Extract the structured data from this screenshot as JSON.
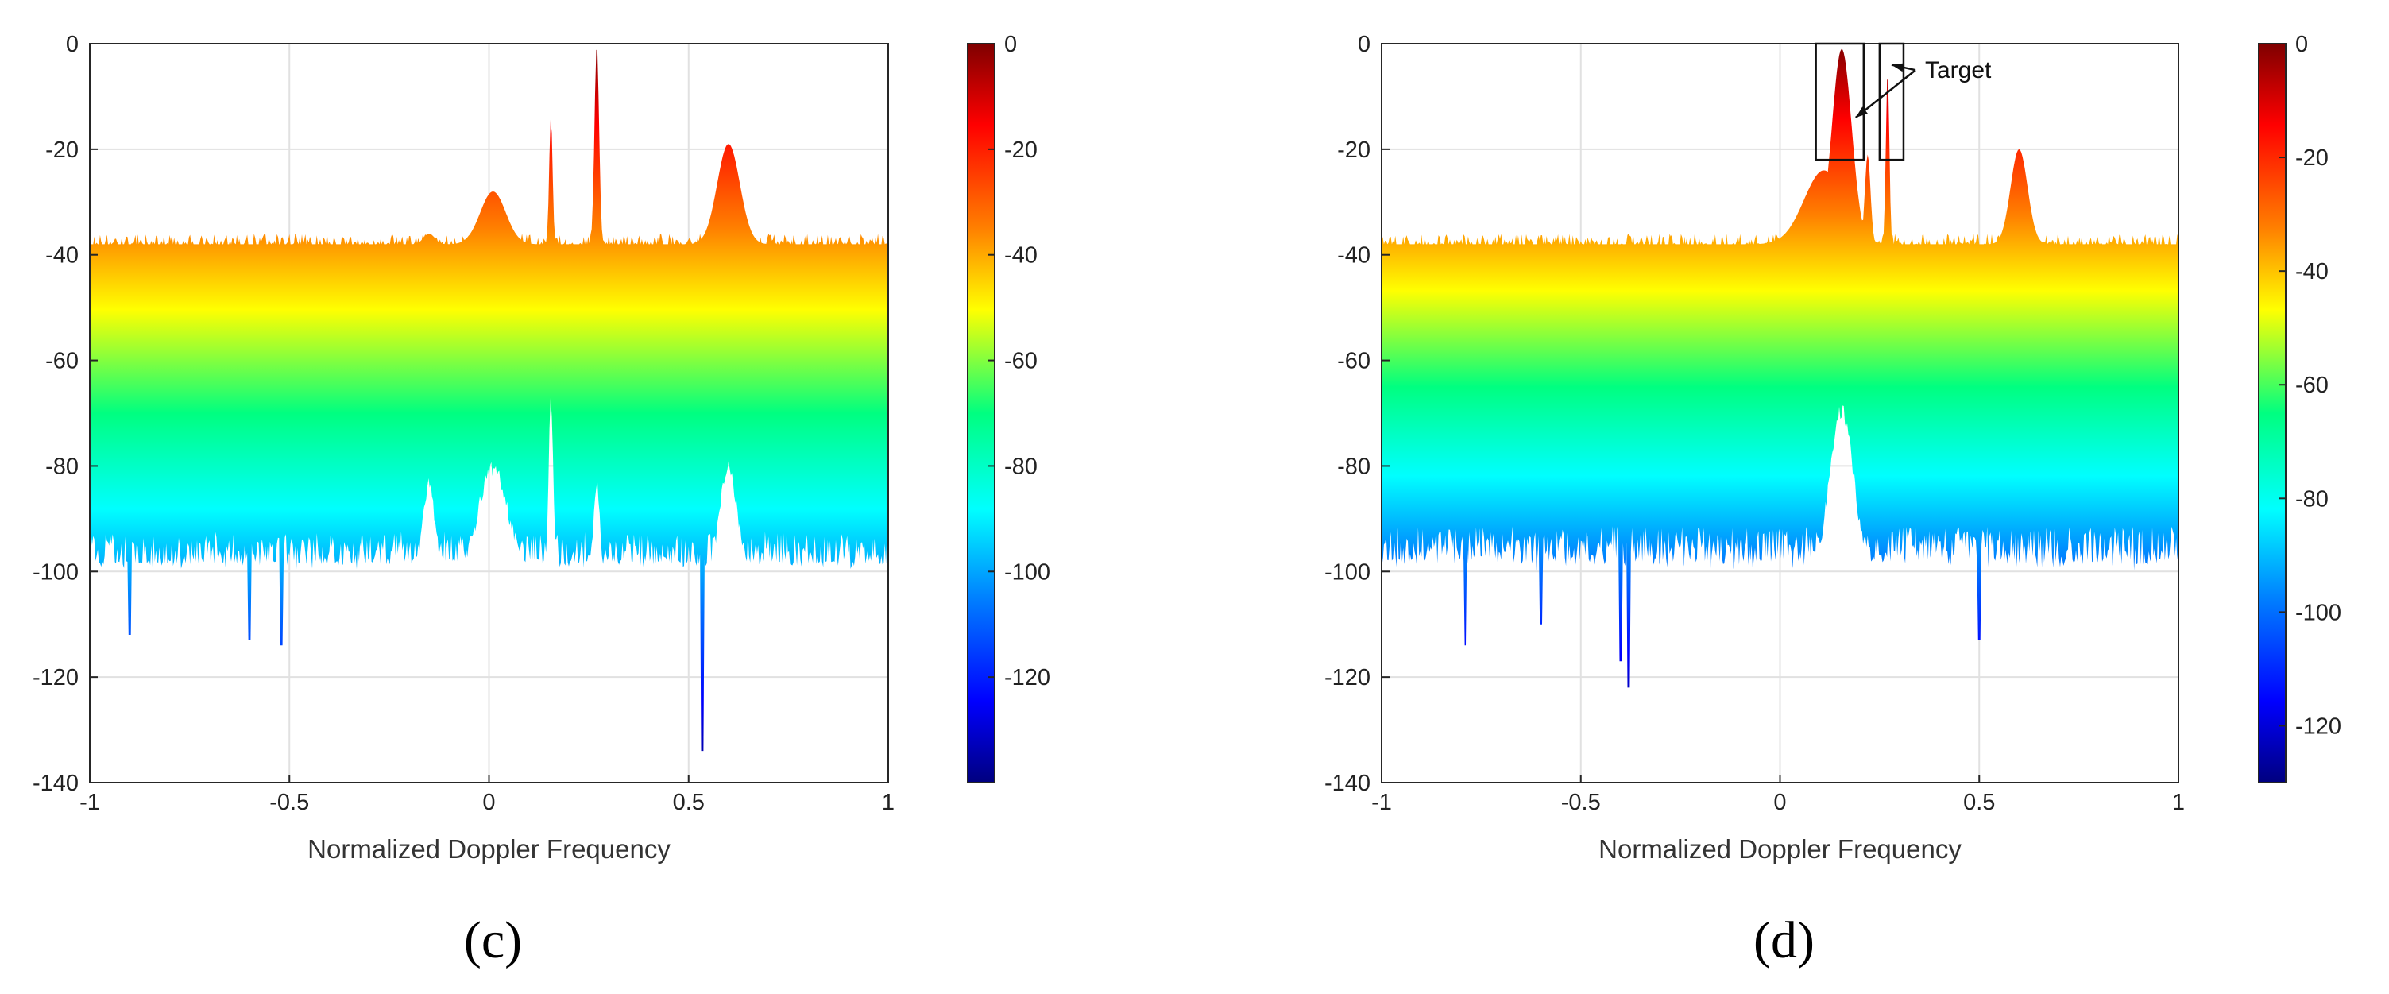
{
  "chart_data": [
    {
      "type": "area",
      "panel_label": "(c)",
      "xlabel": "Normalized Doppler Frequency",
      "ylabel": "",
      "xlim": [
        -1,
        1
      ],
      "ylim": [
        -140,
        0
      ],
      "x_ticks": [
        -1,
        -0.5,
        0,
        0.5,
        1
      ],
      "x_tick_labels": [
        "-1",
        "-0.5",
        "0",
        "0.5",
        "1"
      ],
      "y_ticks": [
        0,
        -20,
        -40,
        -60,
        -80,
        -100,
        -120,
        -140
      ],
      "y_tick_labels": [
        "0",
        "-20",
        "-40",
        "-60",
        "-80",
        "-100",
        "-120",
        "-140"
      ],
      "grid": true,
      "colorbar": {
        "range": [
          -140,
          0
        ],
        "ticks": [
          0,
          -20,
          -40,
          -60,
          -80,
          -100,
          -120
        ],
        "tick_labels": [
          "0",
          "-20",
          "-40",
          "-60",
          "-80",
          "-100",
          "-120"
        ]
      },
      "upper_envelope": {
        "baseline": -38,
        "peaks": [
          {
            "x": 0.01,
            "y": -28,
            "width": 0.045
          },
          {
            "x": -0.15,
            "y": -36,
            "width": 0.02
          },
          {
            "x": 0.155,
            "y": -14,
            "width": 0.006
          },
          {
            "x": 0.27,
            "y": 0,
            "width": 0.008
          },
          {
            "x": 0.6,
            "y": -19,
            "width": 0.04
          }
        ]
      },
      "lower_envelope": {
        "baseline": -98,
        "peaks": [
          {
            "x": 0.01,
            "y": -79,
            "width": 0.05
          },
          {
            "x": -0.15,
            "y": -82,
            "width": 0.02
          },
          {
            "x": 0.155,
            "y": -66,
            "width": 0.008
          },
          {
            "x": 0.27,
            "y": -81,
            "width": 0.01
          },
          {
            "x": 0.6,
            "y": -79,
            "width": 0.03
          }
        ],
        "dips": [
          {
            "x": 0.535,
            "y": -134
          },
          {
            "x": -0.52,
            "y": -114
          },
          {
            "x": -0.6,
            "y": -113
          },
          {
            "x": -0.9,
            "y": -112
          }
        ]
      }
    },
    {
      "type": "area",
      "panel_label": "(d)",
      "xlabel": "Normalized Doppler Frequency",
      "ylabel": "",
      "xlim": [
        -1,
        1
      ],
      "ylim": [
        -140,
        0
      ],
      "x_ticks": [
        -1,
        -0.5,
        0,
        0.5,
        1
      ],
      "x_tick_labels": [
        "-1",
        "-0.5",
        "0",
        "0.5",
        "1"
      ],
      "y_ticks": [
        0,
        -20,
        -40,
        -60,
        -80,
        -100,
        -120,
        -140
      ],
      "y_tick_labels": [
        "0",
        "-20",
        "-40",
        "-60",
        "-80",
        "-100",
        "-120",
        "-140"
      ],
      "grid": true,
      "colorbar": {
        "range": [
          -130,
          0
        ],
        "ticks": [
          0,
          -20,
          -40,
          -60,
          -80,
          -100,
          -120
        ],
        "tick_labels": [
          "0",
          "-20",
          "-40",
          "-60",
          "-80",
          "-100",
          "-120"
        ]
      },
      "annotation": {
        "text": "Target",
        "boxes": [
          {
            "x0": 0.09,
            "x1": 0.21,
            "y0": -22,
            "y1": 0
          },
          {
            "x0": 0.25,
            "x1": 0.31,
            "y0": -22,
            "y1": 0
          }
        ]
      },
      "upper_envelope": {
        "baseline": -38,
        "peaks": [
          {
            "x": 0.11,
            "y": -24,
            "width": 0.07
          },
          {
            "x": 0.155,
            "y": -1,
            "width": 0.035
          },
          {
            "x": 0.22,
            "y": -21,
            "width": 0.01
          },
          {
            "x": 0.27,
            "y": -5,
            "width": 0.006
          },
          {
            "x": 0.6,
            "y": -20,
            "width": 0.03
          }
        ]
      },
      "lower_envelope": {
        "baseline": -97,
        "peaks": [
          {
            "x": 0.155,
            "y": -68,
            "width": 0.04
          }
        ],
        "dips": [
          {
            "x": -0.38,
            "y": -122
          },
          {
            "x": -0.4,
            "y": -117
          },
          {
            "x": -0.79,
            "y": -114
          },
          {
            "x": 0.5,
            "y": -113
          },
          {
            "x": -0.6,
            "y": -110
          }
        ]
      }
    }
  ]
}
